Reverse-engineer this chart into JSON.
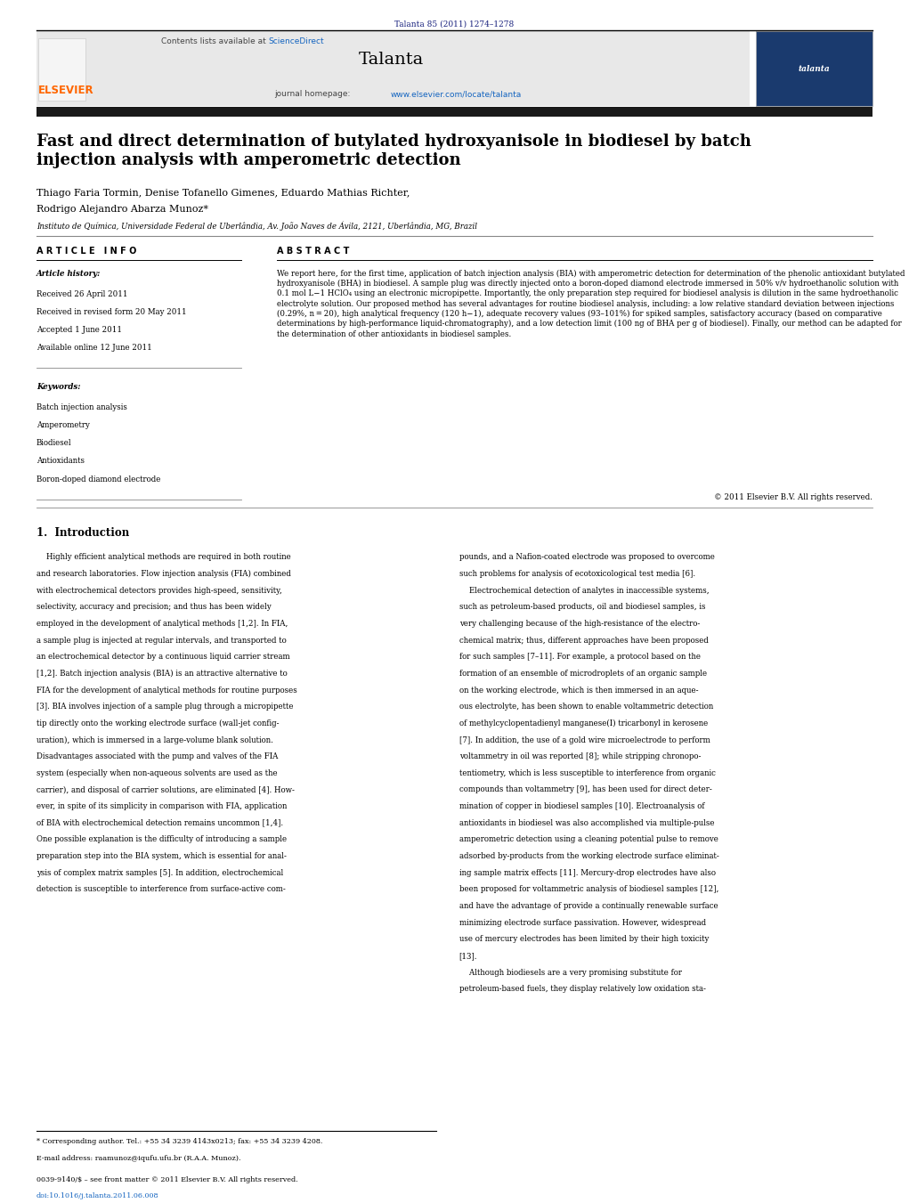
{
  "page_width": 10.21,
  "page_height": 13.51,
  "bg_color": "#ffffff",
  "top_citation": "Talanta 85 (2011) 1274–1278",
  "top_citation_color": "#1a237e",
  "header_bg": "#e8e8e8",
  "header_contents_prefix": "Contents lists available at ",
  "header_contents_link": "ScienceDirect",
  "header_journal": "Talanta",
  "header_homepage_prefix": "journal homepage: ",
  "header_homepage_url": "www.elsevier.com/locate/talanta",
  "sciencedirect_color": "#1565c0",
  "homepage_url_color": "#1565c0",
  "article_title": "Fast and direct determination of butylated hydroxyanisole in biodiesel by batch\ninjection analysis with amperometric detection",
  "authors_line1": "Thiago Faria Tormin, Denise Tofanello Gimenes, Eduardo Mathias Richter,",
  "authors_line2": "Rodrigo Alejandro Abarza Munoz*",
  "affiliation": "Instituto de Química, Universidade Federal de Uberlândia, Av. João Naves de Ávila, 2121, Uberlândia, MG, Brazil",
  "article_info_title": "A R T I C L E   I N F O",
  "abstract_title": "A B S T R A C T",
  "article_history_title": "Article history:",
  "article_history_items": [
    "Received 26 April 2011",
    "Received in revised form 20 May 2011",
    "Accepted 1 June 2011",
    "Available online 12 June 2011"
  ],
  "keywords_title": "Keywords:",
  "keywords_items": [
    "Batch injection analysis",
    "Amperometry",
    "Biodiesel",
    "Antioxidants",
    "Boron-doped diamond electrode"
  ],
  "abstract_text": "We report here, for the first time, application of batch injection analysis (BIA) with amperometric detection for determination of the phenolic antioxidant butylated hydroxyanisole (BHA) in biodiesel. A sample plug was directly injected onto a boron-doped diamond electrode immersed in 50% v/v hydroethanolic solution with 0.1 mol L−1 HClO₄ using an electronic micropipette. Importantly, the only preparation step required for biodiesel analysis is dilution in the same hydroethanolic electrolyte solution. Our proposed method has several advantages for routine biodiesel analysis, including: a low relative standard deviation between injections (0.29%, n = 20), high analytical frequency (120 h−1), adequate recovery values (93–101%) for spiked samples, satisfactory accuracy (based on comparative determinations by high-performance liquid-chromatography), and a low detection limit (100 ng of BHA per g of biodiesel). Finally, our method can be adapted for the determination of other antioxidants in biodiesel samples.",
  "copyright": "© 2011 Elsevier B.V. All rights reserved.",
  "section1_title": "1.  Introduction",
  "intro_col1_lines": [
    "    Highly efficient analytical methods are required in both routine",
    "and research laboratories. Flow injection analysis (FIA) combined",
    "with electrochemical detectors provides high-speed, sensitivity,",
    "selectivity, accuracy and precision; and thus has been widely",
    "employed in the development of analytical methods [1,2]. In FIA,",
    "a sample plug is injected at regular intervals, and transported to",
    "an electrochemical detector by a continuous liquid carrier stream",
    "[1,2]. Batch injection analysis (BIA) is an attractive alternative to",
    "FIA for the development of analytical methods for routine purposes",
    "[3]. BIA involves injection of a sample plug through a micropipette",
    "tip directly onto the working electrode surface (wall-jet config-",
    "uration), which is immersed in a large-volume blank solution.",
    "Disadvantages associated with the pump and valves of the FIA",
    "system (especially when non-aqueous solvents are used as the",
    "carrier), and disposal of carrier solutions, are eliminated [4]. How-",
    "ever, in spite of its simplicity in comparison with FIA, application",
    "of BIA with electrochemical detection remains uncommon [1,4].",
    "One possible explanation is the difficulty of introducing a sample",
    "preparation step into the BIA system, which is essential for anal-",
    "ysis of complex matrix samples [5]. In addition, electrochemical",
    "detection is susceptible to interference from surface-active com-"
  ],
  "intro_col2_lines": [
    "pounds, and a Nafion-coated electrode was proposed to overcome",
    "such problems for analysis of ecotoxicological test media [6].",
    "    Electrochemical detection of analytes in inaccessible systems,",
    "such as petroleum-based products, oil and biodiesel samples, is",
    "very challenging because of the high-resistance of the electro-",
    "chemical matrix; thus, different approaches have been proposed",
    "for such samples [7–11]. For example, a protocol based on the",
    "formation of an ensemble of microdroplets of an organic sample",
    "on the working electrode, which is then immersed in an aque-",
    "ous electrolyte, has been shown to enable voltammetric detection",
    "of methylcyclopentadienyl manganese(I) tricarbonyl in kerosene",
    "[7]. In addition, the use of a gold wire microelectrode to perform",
    "voltammetry in oil was reported [8]; while stripping chronopo-",
    "tentiometry, which is less susceptible to interference from organic",
    "compounds than voltammetry [9], has been used for direct deter-",
    "mination of copper in biodiesel samples [10]. Electroanalysis of",
    "antioxidants in biodiesel was also accomplished via multiple-pulse",
    "amperometric detection using a cleaning potential pulse to remove",
    "adsorbed by-products from the working electrode surface eliminat-",
    "ing sample matrix effects [11]. Mercury-drop electrodes have also",
    "been proposed for voltammetric analysis of biodiesel samples [12],",
    "and have the advantage of provide a continually renewable surface",
    "minimizing electrode surface passivation. However, widespread",
    "use of mercury electrodes has been limited by their high toxicity",
    "[13].",
    "    Although biodiesels are a very promising substitute for",
    "petroleum-based fuels, they display relatively low oxidation sta-"
  ],
  "footer_footnote": "* Corresponding author. Tel.: +55 34 3239 4143x0213; fax: +55 34 3239 4208.",
  "footer_email": "E-mail address: raamunoz@iqufu.ufu.br (R.A.A. Munoz).",
  "footer_issn": "0039-9140/$ – see front matter © 2011 Elsevier B.V. All rights reserved.",
  "footer_doi": "doi:10.1016/j.talanta.2011.06.008"
}
